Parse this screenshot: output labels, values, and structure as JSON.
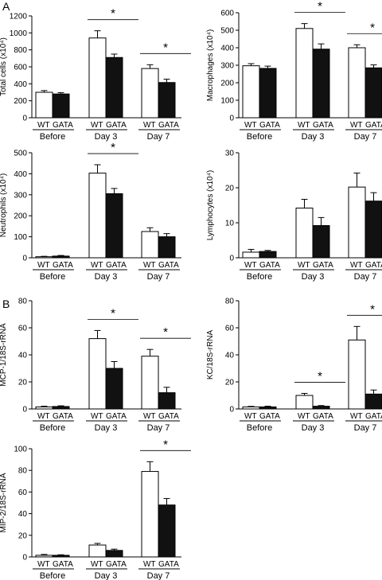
{
  "panel_labels": [
    "A",
    "B"
  ],
  "group_labels": [
    "Before",
    "Day 3",
    "Day 7"
  ],
  "series_labels": [
    "WT",
    "GATA"
  ],
  "colors": {
    "WT": "#ffffff",
    "GATA": "#111111",
    "axis": "#000000"
  },
  "chart_data": [
    {
      "type": "bar",
      "ylabel": "Total cells (x10⁴)",
      "ylim": [
        0,
        1200
      ],
      "yticks": [
        0,
        200,
        400,
        600,
        800,
        1000,
        1200
      ],
      "categories": [
        "Before",
        "Day 3",
        "Day 7"
      ],
      "series": [
        {
          "name": "WT",
          "values": [
            300,
            940,
            580
          ],
          "errors": [
            20,
            85,
            45
          ]
        },
        {
          "name": "GATA",
          "values": [
            280,
            710,
            415
          ],
          "errors": [
            15,
            40,
            40
          ]
        }
      ],
      "significance": [
        "",
        "*",
        "*"
      ]
    },
    {
      "type": "bar",
      "ylabel": "Macrophages (x10⁴)",
      "ylim": [
        0,
        600
      ],
      "yticks": [
        0,
        100,
        200,
        300,
        400,
        500,
        600
      ],
      "categories": [
        "Before",
        "Day 3",
        "Day 7"
      ],
      "series": [
        {
          "name": "WT",
          "values": [
            297,
            510,
            400
          ],
          "errors": [
            12,
            28,
            17
          ]
        },
        {
          "name": "GATA",
          "values": [
            282,
            392,
            285
          ],
          "errors": [
            13,
            30,
            17
          ]
        }
      ],
      "significance": [
        "",
        "*",
        "*"
      ]
    },
    {
      "type": "bar",
      "ylabel": "Neutrophils (x10⁴)",
      "ylim": [
        0,
        500
      ],
      "yticks": [
        0,
        100,
        200,
        300,
        400,
        500
      ],
      "categories": [
        "Before",
        "Day 3",
        "Day 7"
      ],
      "series": [
        {
          "name": "WT",
          "values": [
            5,
            403,
            125
          ],
          "errors": [
            2,
            40,
            18
          ]
        },
        {
          "name": "GATA",
          "values": [
            8,
            305,
            100
          ],
          "errors": [
            3,
            25,
            15
          ]
        }
      ],
      "significance": [
        "",
        "*",
        ""
      ]
    },
    {
      "type": "bar",
      "ylabel": "Lymphocytes (x10⁴)",
      "ylim": [
        0,
        30
      ],
      "yticks": [
        0,
        10,
        20,
        30
      ],
      "categories": [
        "Before",
        "Day 3",
        "Day 7"
      ],
      "series": [
        {
          "name": "WT",
          "values": [
            1.6,
            14.2,
            20.2
          ],
          "errors": [
            0.8,
            2.5,
            4
          ]
        },
        {
          "name": "GATA",
          "values": [
            1.8,
            9.2,
            16.2
          ],
          "errors": [
            0.3,
            2.3,
            2.4
          ]
        }
      ],
      "significance": [
        "",
        "",
        ""
      ]
    },
    {
      "type": "bar",
      "ylabel": "MCP-1/18S-rRNA",
      "ylim": [
        0,
        80
      ],
      "yticks": [
        0,
        20,
        40,
        60,
        80
      ],
      "categories": [
        "Before",
        "Day 3",
        "Day 7"
      ],
      "series": [
        {
          "name": "WT",
          "values": [
            1.5,
            52,
            39
          ],
          "errors": [
            0.5,
            6,
            5
          ]
        },
        {
          "name": "GATA",
          "values": [
            1.8,
            30,
            12
          ],
          "errors": [
            0.5,
            5,
            4
          ]
        }
      ],
      "significance": [
        "",
        "*",
        "*"
      ]
    },
    {
      "type": "bar",
      "ylabel": "KC/18S-rRNA",
      "ylim": [
        0,
        80
      ],
      "yticks": [
        0,
        20,
        40,
        60,
        80
      ],
      "categories": [
        "Before",
        "Day 3",
        "Day 7"
      ],
      "series": [
        {
          "name": "WT",
          "values": [
            1.5,
            10,
            51
          ],
          "errors": [
            0.4,
            1.5,
            10
          ]
        },
        {
          "name": "GATA",
          "values": [
            1.5,
            2,
            11
          ],
          "errors": [
            0.5,
            0.5,
            3
          ]
        }
      ],
      "significance": [
        "",
        "*",
        "*"
      ]
    },
    {
      "type": "bar",
      "ylabel": "MIP-2/18S-rRNA",
      "ylim": [
        0,
        100
      ],
      "yticks": [
        0,
        20,
        40,
        60,
        80,
        100
      ],
      "categories": [
        "Before",
        "Day 3",
        "Day 7"
      ],
      "series": [
        {
          "name": "WT",
          "values": [
            1.5,
            11,
            79
          ],
          "errors": [
            0.8,
            1.5,
            9
          ]
        },
        {
          "name": "GATA",
          "values": [
            1.5,
            6,
            48
          ],
          "errors": [
            0.5,
            1.2,
            6
          ]
        }
      ],
      "significance": [
        "",
        "",
        "*"
      ]
    }
  ]
}
